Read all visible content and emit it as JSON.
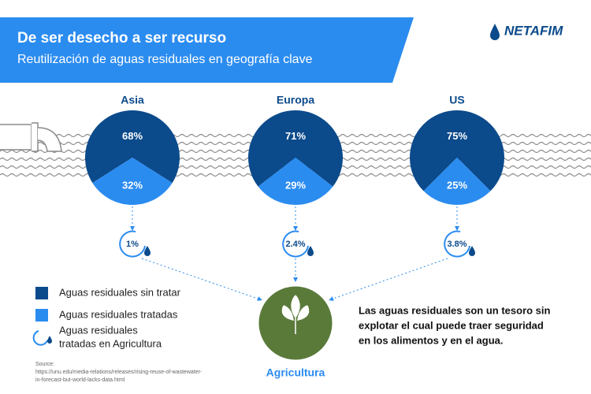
{
  "header": {
    "title": "De ser desecho a ser recurso",
    "subtitle": "Reutilización de aguas residuales en geografía clave",
    "brand": "NETAFIM"
  },
  "chart_data": [
    {
      "type": "pie",
      "title": "Asia",
      "values": [
        68,
        32
      ],
      "value_labels": [
        "68%",
        "32%"
      ],
      "colors": [
        "#0b4a8b",
        "#2b8cf0"
      ]
    },
    {
      "type": "pie",
      "title": "Europa",
      "values": [
        71,
        29
      ],
      "value_labels": [
        "71%",
        "29%"
      ],
      "colors": [
        "#0b4a8b",
        "#2b8cf0"
      ]
    },
    {
      "type": "pie",
      "title": "US",
      "values": [
        75,
        25
      ],
      "value_labels": [
        "75%",
        "25%"
      ],
      "colors": [
        "#0b4a8b",
        "#2b8cf0"
      ]
    }
  ],
  "agriculture_shares": [
    "1%",
    "2.4%",
    "3.8%"
  ],
  "hub_label": "Agricultura",
  "legend": [
    "Aguas residuales sin tratar",
    "Aguas residuales tratadas",
    "Aguas residuales",
    "tratadas en Agricultura"
  ],
  "caption": [
    "Las aguas residuales son un tesoro sin",
    "explotar el cual puede traer seguridad",
    "en los alimentos y en el agua."
  ],
  "source": [
    "Source:",
    "https://unu.edu/media-relations/releases/rising-reuse-of-wastewater-",
    "in-forecast-but-world-lacks-data.html"
  ]
}
